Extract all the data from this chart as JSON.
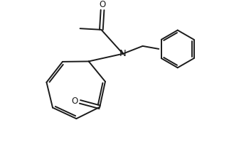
{
  "bg_color": "#ffffff",
  "line_color": "#1a1a1a",
  "line_width": 1.4,
  "font_size": 8.5,
  "fig_width": 3.22,
  "fig_height": 2.0,
  "dpi": 100,
  "xlim": [
    0,
    9
  ],
  "ylim": [
    0,
    5.6
  ]
}
